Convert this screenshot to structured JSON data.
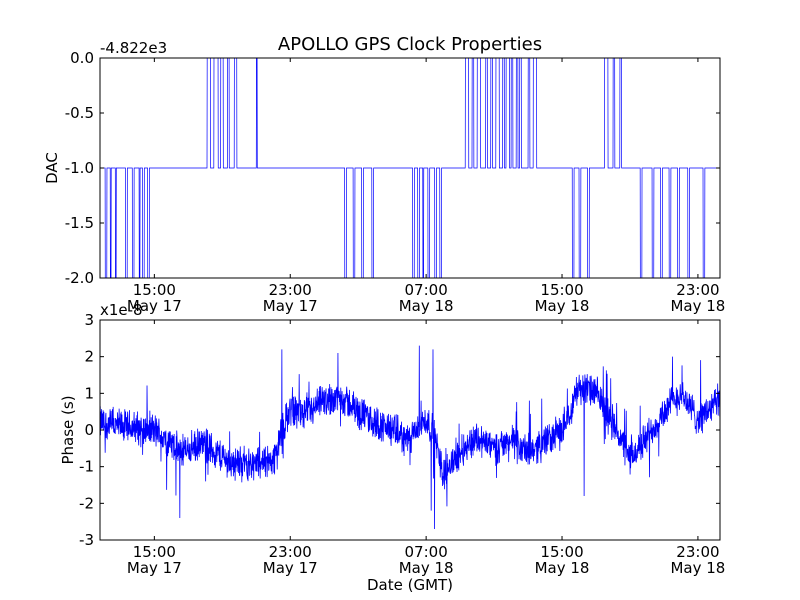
{
  "figure_title": "APOLLO GPS Clock Properties",
  "colors": {
    "line": "#0000ff",
    "axes": "#000000",
    "background": "#ffffff"
  },
  "chart_data": [
    {
      "type": "line",
      "ylabel": "DAC",
      "xlabel": "",
      "offset_text": "-4.822e3",
      "ylim": [
        -2.0,
        0.0
      ],
      "yticks": [
        0.0,
        -0.5,
        -1.0,
        -1.5,
        -2.0
      ],
      "ytick_labels": [
        "0.0",
        "-0.5",
        "-1.0",
        "-1.5",
        "-2.0"
      ],
      "xlim_hours": [
        11.8,
        48.3
      ],
      "xticks_hours": [
        15,
        23,
        31,
        39,
        47
      ],
      "xtick_labels": [
        {
          "time": "15:00",
          "date": "May 17"
        },
        {
          "time": "23:00",
          "date": "May 17"
        },
        {
          "time": "07:00",
          "date": "May 18"
        },
        {
          "time": "15:00",
          "date": "May 18"
        },
        {
          "time": "23:00",
          "date": "May 18"
        }
      ],
      "baseline": -1.0,
      "high_bursts_hours": [
        [
          18.1,
          18.3
        ],
        [
          18.5,
          18.75
        ],
        [
          18.9,
          19.05
        ],
        [
          19.3,
          19.4
        ],
        [
          19.7,
          19.85
        ],
        [
          21.0,
          21.05
        ],
        [
          33.3,
          33.5
        ],
        [
          33.7,
          33.8
        ],
        [
          34.0,
          34.2
        ],
        [
          34.5,
          34.6
        ],
        [
          34.8,
          34.9
        ],
        [
          35.1,
          35.3
        ],
        [
          35.5,
          35.6
        ],
        [
          35.7,
          35.9
        ],
        [
          36.0,
          36.1
        ],
        [
          36.3,
          36.4
        ],
        [
          36.5,
          36.6
        ],
        [
          37.0,
          37.1
        ],
        [
          37.3,
          37.5
        ],
        [
          41.5,
          41.7
        ],
        [
          42.0,
          42.1
        ],
        [
          42.4,
          42.5
        ]
      ],
      "low_bursts_hours": [
        [
          12.1,
          12.2
        ],
        [
          12.4,
          12.45
        ],
        [
          12.7,
          12.75
        ],
        [
          13.3,
          13.4
        ],
        [
          13.7,
          13.8
        ],
        [
          14.1,
          14.15
        ],
        [
          14.3,
          14.4
        ],
        [
          14.6,
          14.7
        ],
        [
          26.2,
          26.3
        ],
        [
          26.7,
          26.8
        ],
        [
          27.2,
          27.3
        ],
        [
          27.8,
          27.9
        ],
        [
          30.2,
          30.3
        ],
        [
          30.5,
          30.6
        ],
        [
          30.8,
          30.85
        ],
        [
          31.1,
          31.2
        ],
        [
          31.5,
          31.6
        ],
        [
          31.8,
          31.9
        ],
        [
          39.6,
          39.7
        ],
        [
          40.0,
          40.1
        ],
        [
          40.5,
          40.6
        ],
        [
          43.6,
          43.7
        ],
        [
          44.3,
          44.4
        ],
        [
          44.8,
          44.9
        ],
        [
          45.3,
          45.4
        ],
        [
          45.8,
          45.9
        ],
        [
          46.4,
          46.5
        ],
        [
          47.3,
          47.4
        ]
      ]
    },
    {
      "type": "line",
      "ylabel": "Phase (s)",
      "xlabel": "Date (GMT)",
      "offset_text": "x1e-8",
      "ylim": [
        -3,
        3
      ],
      "yticks": [
        3,
        2,
        1,
        0,
        -1,
        -2,
        -3
      ],
      "ytick_labels": [
        "3",
        "2",
        "1",
        "0",
        "-1",
        "-2",
        "-3"
      ],
      "xlim_hours": [
        11.8,
        48.3
      ],
      "xticks_hours": [
        15,
        23,
        31,
        39,
        47
      ],
      "xtick_labels": [
        {
          "time": "15:00",
          "date": "May 17"
        },
        {
          "time": "23:00",
          "date": "May 17"
        },
        {
          "time": "07:00",
          "date": "May 18"
        },
        {
          "time": "15:00",
          "date": "May 18"
        },
        {
          "time": "23:00",
          "date": "May 18"
        }
      ],
      "trend_hours": [
        11.8,
        13,
        15,
        16.5,
        18,
        19.5,
        21,
        22,
        23,
        24,
        25,
        26,
        27,
        28,
        29,
        30,
        31,
        31.5,
        32,
        33,
        34,
        35,
        36,
        37,
        38,
        39,
        40,
        41,
        42,
        43,
        44,
        45,
        46,
        47,
        48.3
      ],
      "trend_values": [
        0.2,
        0.1,
        0.0,
        -0.6,
        -0.4,
        -0.9,
        -0.9,
        -0.8,
        0.6,
        0.4,
        0.8,
        0.9,
        0.5,
        0.2,
        0.0,
        -0.3,
        0.3,
        -0.2,
        -1.2,
        -0.6,
        -0.2,
        -0.5,
        -0.3,
        -0.6,
        -0.3,
        0.0,
        1.2,
        1.0,
        0.2,
        -0.8,
        -0.2,
        0.5,
        1.0,
        0.3,
        0.8
      ],
      "noise_amplitude": 0.35,
      "spikes": [
        {
          "hour": 30.6,
          "value": 2.3
        },
        {
          "hour": 31.4,
          "value": 2.2
        },
        {
          "hour": 22.5,
          "value": 2.2
        },
        {
          "hour": 25.8,
          "value": 2.1
        },
        {
          "hour": 45.5,
          "value": 2.0
        },
        {
          "hour": 31.5,
          "value": -2.7
        },
        {
          "hour": 16.5,
          "value": -2.4
        },
        {
          "hour": 31.3,
          "value": -2.2
        },
        {
          "hour": 40.3,
          "value": -1.8
        }
      ]
    }
  ]
}
